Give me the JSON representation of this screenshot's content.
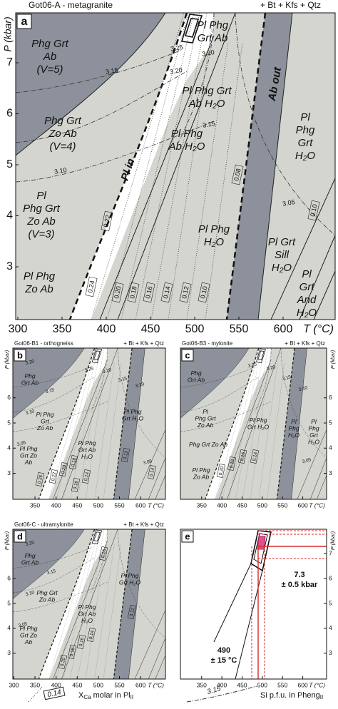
{
  "panels": [
    {
      "letter": "a",
      "title": "Got06-A - metagranite",
      "assemblage": "+ Bt + Kfs + Qtz",
      "x_label": "T (°C)",
      "y_label": "P (kbar)",
      "xticks": [
        300,
        350,
        400,
        450,
        500,
        550,
        600
      ],
      "yticks": [
        3,
        4,
        5,
        6,
        7
      ],
      "fields": [
        [
          "Phg Grt",
          "Ab",
          "(V=5)"
        ],
        [
          "Phg Grt",
          "Zo Ab",
          "(V=4)"
        ],
        [
          "Pl",
          "Phg Grt",
          "Zo Ab",
          "(V=3)"
        ],
        [
          "Pl Phg",
          "Zo Ab"
        ],
        [
          "Pl Phg",
          "Grt Ab"
        ],
        [
          "Pl Phg Grt",
          "Ab H₂O"
        ],
        [
          "Pl Phg",
          "Ab H₂O"
        ],
        [
          "Pl",
          "Phg",
          "Grt",
          "H₂O"
        ],
        [
          "Pl Phg",
          "H₂O"
        ],
        [
          "Pl Grt",
          "Sill",
          "H₂O"
        ],
        [
          "Pl",
          "Grt",
          "And",
          "H₂O"
        ]
      ],
      "boundaries": [
        "Pl in",
        "Ab out"
      ],
      "isopleths_si": [
        "3.25",
        "3.20",
        "3.20",
        "3.15",
        "3.15",
        "3.10",
        "3.05"
      ],
      "isopleths_xca": [
        "0.24",
        "0.22",
        "0.20",
        "0.18",
        "0.16",
        "0.14",
        "0.12",
        "0.10",
        "0.08",
        "0.10"
      ]
    },
    {
      "letter": "b",
      "title": "Got06-B1 - orthogneiss",
      "assemblage": "+ Bt + Kfs + Qtz",
      "x_label": "T (°C)",
      "y_label": "P (kbar)",
      "xticks": [
        350,
        400,
        450,
        500,
        550,
        600
      ],
      "yticks": [
        3,
        4,
        5,
        6
      ],
      "fields": [
        [
          "Phg",
          "Grt Ab"
        ],
        [
          "Pl Phg",
          "Grt",
          "Zo Ab"
        ],
        [
          "Pl Phg",
          "Grt Zo",
          "Ab"
        ],
        [
          "Pl Phg",
          "Grt Ab",
          "H₂O"
        ],
        [
          "Pl Phg",
          "Grt H₂O"
        ]
      ],
      "isopleths_si": [
        "3.20",
        "3.15",
        "3.10",
        "3.05",
        "3.25",
        "3.20",
        "3.15",
        "3.10",
        "3.05"
      ],
      "isopleths_xca": [
        "0.26",
        "0.22",
        "0.20",
        "0.18",
        "0.16",
        "0.14",
        "0.12",
        "0.14"
      ]
    },
    {
      "letter": "c",
      "title": "Got06-B3 - mylonite",
      "assemblage": "+ Bt + Kfs + Qtz",
      "x_label": "T (°C)",
      "y_label": "P (kbar)",
      "xticks": [
        350,
        400,
        450,
        500,
        550,
        600
      ],
      "yticks": [
        3,
        4,
        5,
        6
      ],
      "fields": [
        [
          "Phg",
          "Grt Ab"
        ],
        [
          "Pl",
          "Phg Grt",
          "Zo Ab"
        ],
        [
          "Phg Grt Zo Ab"
        ],
        [
          "Pl Phg",
          "Zo Ab"
        ],
        [
          "Pl Phg",
          "Grt H₂O"
        ],
        [
          "Pl",
          "Phg",
          "H₂O"
        ],
        [
          "Pl",
          "Phg",
          "Grt",
          "H₂O"
        ]
      ],
      "isopleths_si": [
        "3.25",
        "3.20",
        "3.15",
        "3.10",
        "3.05"
      ],
      "isopleths_xca": [
        "0.20",
        "0.18",
        "0.16",
        "0.14"
      ]
    },
    {
      "letter": "d",
      "title": "Got06-C - ultramylonite",
      "assemblage": "+ Bt + Kfs + Qtz",
      "x_label": "T (°C)",
      "y_label": "P (kbar)",
      "xticks": [
        300,
        350,
        400,
        450,
        500,
        550,
        600
      ],
      "yticks": [
        3,
        4,
        5,
        6
      ],
      "fields": [
        [
          "Phg",
          "Grt Ab"
        ],
        [
          "Phg Grt",
          "Zo Ab"
        ],
        [
          "Pl Phg",
          "Grt Zo",
          "Ab"
        ],
        [
          "Pl Phg",
          "Grt Ab",
          "H₂O"
        ],
        [
          "Pl Phg",
          "Grt H₂O"
        ]
      ],
      "isopleths_si": [
        "3.20",
        "3.15",
        "3.10",
        "3.05"
      ],
      "isopleths_xca": [
        "0.20",
        "0.18",
        "0.16",
        "0.14",
        "0.12",
        "0.16"
      ]
    },
    {
      "letter": "e",
      "x_label": "T (°C)",
      "y_label": "P (kbar)",
      "xticks": [
        350,
        400,
        450,
        500,
        550,
        600
      ],
      "yticks": [
        3,
        4,
        5,
        6,
        7
      ],
      "pressure": [
        "7.3",
        "± 0.5 kbar"
      ],
      "temperature": [
        "490",
        "± 15 °C"
      ]
    }
  ],
  "legend": {
    "xca_symbol": "0.14",
    "xca_text": [
      "X",
      "Ca",
      " molar in Pl",
      "II"
    ],
    "si_symbol": "3.15",
    "si_text": [
      "Si p.f.u. in Pheng",
      "II"
    ]
  }
}
